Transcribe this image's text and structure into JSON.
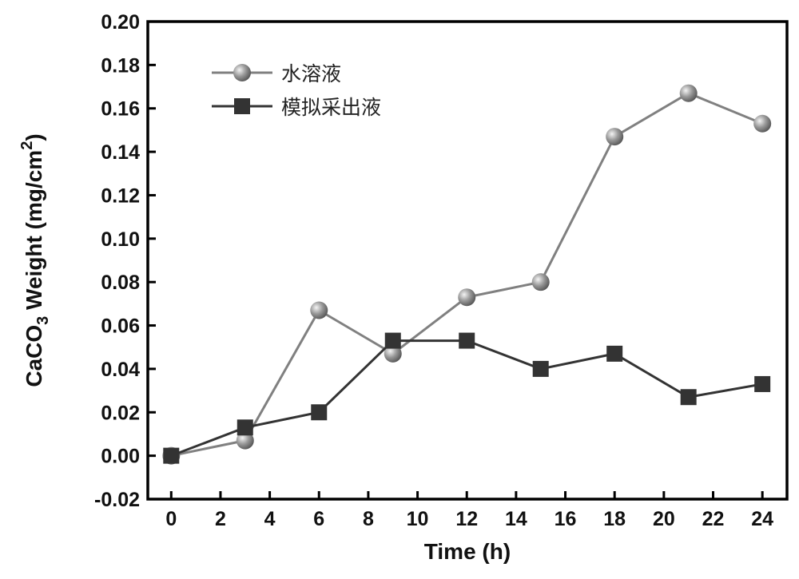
{
  "chart_data": {
    "type": "line",
    "title": "",
    "xlabel": "Time (h)",
    "ylabel": "CaCO3 Weight (mg/cm2)",
    "ylabel_parts": {
      "a": "CaCO",
      "sub": "3",
      "b": " Weight ",
      "c": "(mg/cm",
      "sup": "2",
      "d": ")"
    },
    "xlim": [
      -0.95,
      25
    ],
    "ylim": [
      -0.02,
      0.2
    ],
    "xticks": [
      0,
      2,
      4,
      6,
      8,
      10,
      12,
      14,
      16,
      18,
      20,
      22,
      24
    ],
    "yticks": [
      -0.02,
      0.0,
      0.02,
      0.04,
      0.06,
      0.08,
      0.1,
      0.12,
      0.14,
      0.16,
      0.18,
      0.2
    ],
    "ytick_labels": [
      "-0.02",
      "0.00",
      "0.02",
      "0.04",
      "0.06",
      "0.08",
      "0.10",
      "0.12",
      "0.14",
      "0.16",
      "0.18",
      "0.20"
    ],
    "grid": false,
    "legend_position": "top-left",
    "x": [
      0,
      3,
      6,
      9,
      12,
      15,
      18,
      21,
      24
    ],
    "series": [
      {
        "name": "水溶液",
        "marker": "sphere",
        "color": "#808080",
        "values": [
          0.0,
          0.007,
          0.067,
          0.047,
          0.073,
          0.08,
          0.147,
          0.167,
          0.153
        ]
      },
      {
        "name": "模拟采出液",
        "marker": "square",
        "color": "#333333",
        "values": [
          0.0,
          0.013,
          0.02,
          0.053,
          0.053,
          0.04,
          0.047,
          0.027,
          0.033
        ]
      }
    ]
  }
}
